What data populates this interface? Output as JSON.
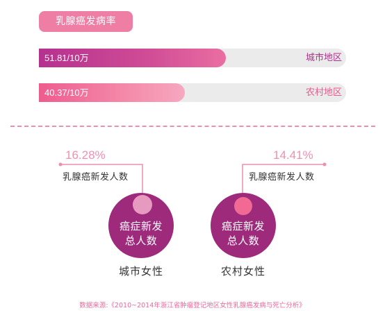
{
  "header": {
    "title": "乳腺癌发病率"
  },
  "chart_data": [
    {
      "type": "bar",
      "orientation": "horizontal",
      "title": "乳腺癌发病率",
      "unit": "/10万",
      "categories": [
        "城市地区",
        "农村地区"
      ],
      "values": [
        51.81,
        40.37
      ],
      "value_labels": [
        "51.81/10万",
        "40.37/10万"
      ],
      "xlim": [
        0,
        85
      ],
      "colors": [
        "#b5318f",
        "#ef6a96"
      ]
    },
    {
      "type": "pie",
      "subtitle": "乳腺癌新发人数",
      "groups": [
        {
          "name": "城市女性",
          "percent": 16.28,
          "percent_label": "16.28%",
          "circle_text": [
            "癌症新发",
            "总人数"
          ],
          "marker_color": "#e79ac0"
        },
        {
          "name": "农村女性",
          "percent": 14.41,
          "percent_label": "14.41%",
          "circle_text": [
            "癌症新发",
            "总人数"
          ],
          "marker_color": "#f16a94"
        }
      ]
    }
  ],
  "footer": {
    "source": "数据来源:《2010~2014年浙江省肿瘤登记地区女性乳腺癌发病与死亡分析》"
  }
}
